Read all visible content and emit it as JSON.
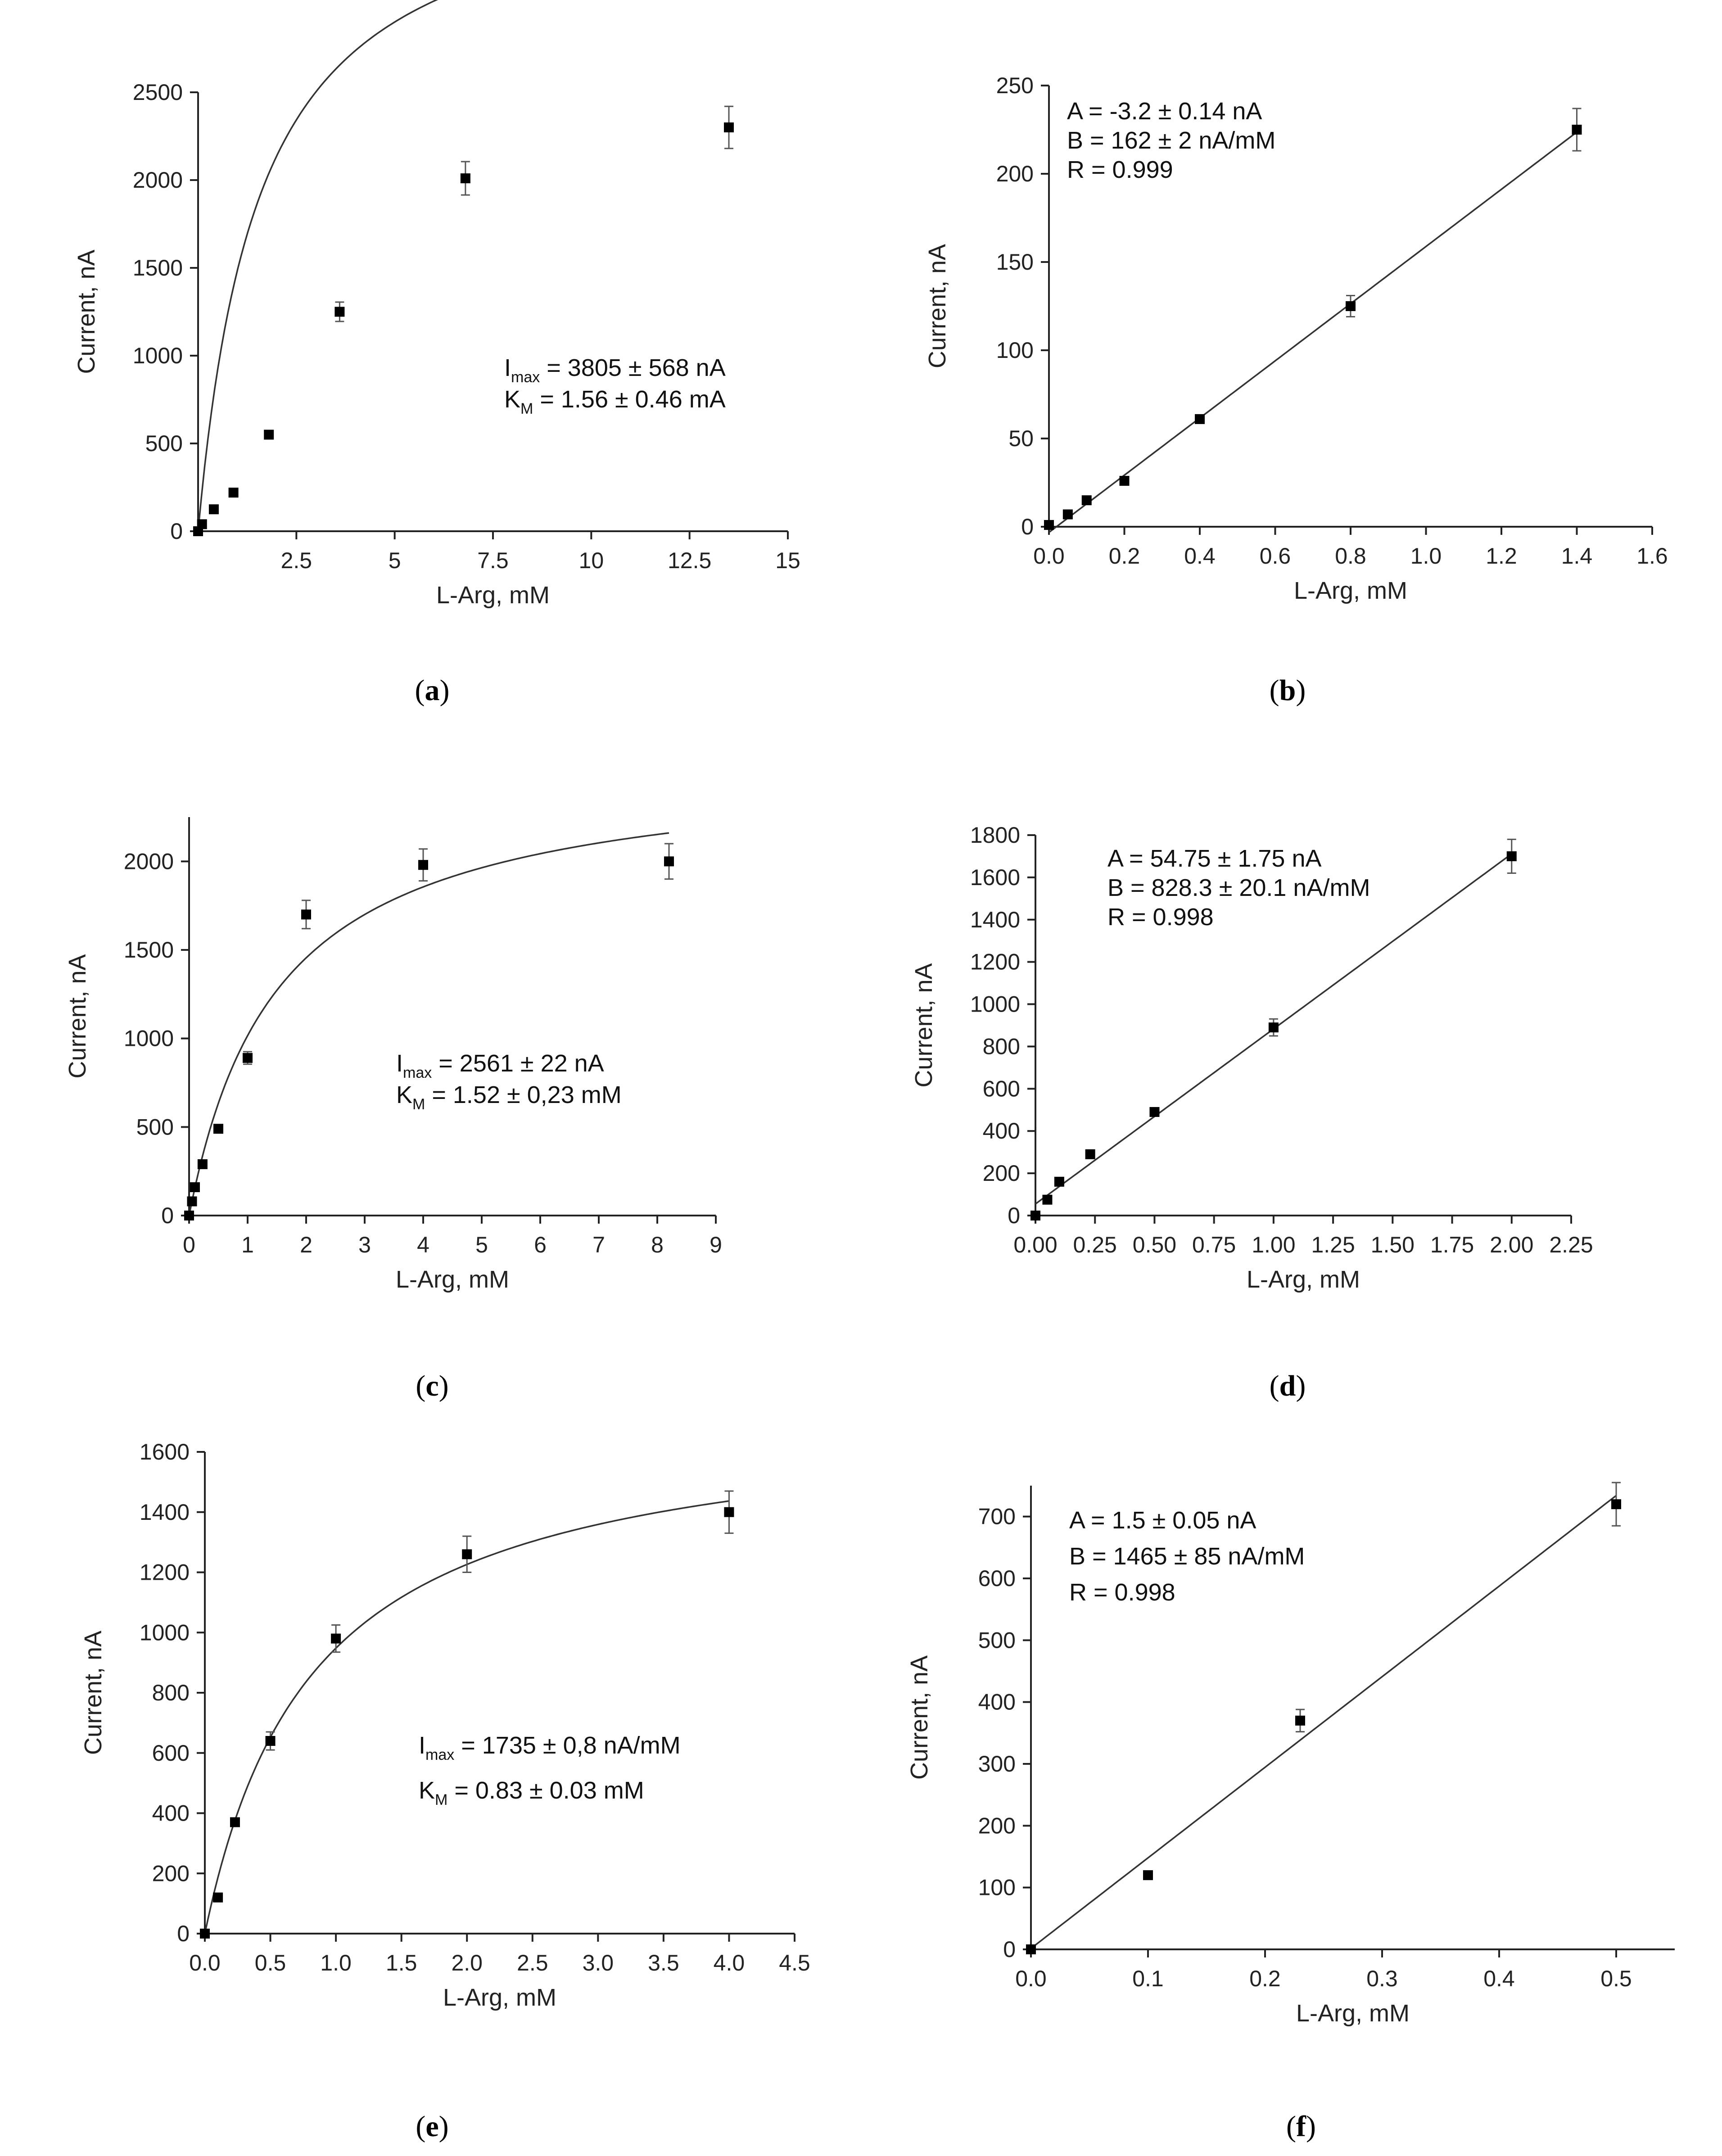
{
  "chart_data": [
    {
      "id": "a",
      "type": "scatter",
      "caption": "a",
      "xlabel": "L-Arg, mM",
      "ylabel": "Current, nA",
      "xlim": [
        0,
        15
      ],
      "ylim": [
        0,
        2500
      ],
      "xticks": [
        2.5,
        5,
        7.5,
        10,
        12.5,
        15
      ],
      "xtick_labels": [
        "2.5",
        "5",
        "7.5",
        "10",
        "12.5",
        "15"
      ],
      "yticks": [
        0,
        500,
        1000,
        1500,
        2000,
        2500
      ],
      "ytick_labels": [
        "0",
        "500",
        "1000",
        "1500",
        "2000",
        "2500"
      ],
      "points": [
        {
          "x": 0.0,
          "y": 0
        },
        {
          "x": 0.1,
          "y": 40
        },
        {
          "x": 0.4,
          "y": 125
        },
        {
          "x": 0.9,
          "y": 220
        },
        {
          "x": 1.8,
          "y": 550
        },
        {
          "x": 3.6,
          "y": 1250,
          "err": 55
        },
        {
          "x": 6.8,
          "y": 2010,
          "err": 95
        },
        {
          "x": 13.5,
          "y": 2300,
          "err": 120
        }
      ],
      "fit": {
        "kind": "michaelis",
        "vmax": 3805,
        "km": 1.56,
        "x0": 0,
        "x1": 13.5
      },
      "annotation": [
        {
          "main": "I",
          "sub": "max",
          "rest": " = 3805 ± 568 nA"
        },
        {
          "main": "K",
          "sub": "M",
          "rest": " = 1.56 ± 0.46 mA"
        }
      ]
    },
    {
      "id": "b",
      "type": "scatter",
      "caption": "b",
      "xlabel": "L-Arg, mM",
      "ylabel": "Current, nA",
      "xlim": [
        0,
        1.6
      ],
      "ylim": [
        0,
        250
      ],
      "xticks": [
        0,
        0.2,
        0.4,
        0.6,
        0.8,
        1.0,
        1.2,
        1.4,
        1.6
      ],
      "xtick_labels": [
        "0.0",
        "0.2",
        "0.4",
        "0.6",
        "0.8",
        "1.0",
        "1.2",
        "1.4",
        "1.6"
      ],
      "yticks": [
        0,
        50,
        100,
        150,
        200,
        250
      ],
      "ytick_labels": [
        "0",
        "50",
        "100",
        "150",
        "200",
        "250"
      ],
      "points": [
        {
          "x": 0.0,
          "y": 1
        },
        {
          "x": 0.05,
          "y": 7
        },
        {
          "x": 0.1,
          "y": 15
        },
        {
          "x": 0.2,
          "y": 26
        },
        {
          "x": 0.4,
          "y": 61
        },
        {
          "x": 0.8,
          "y": 125,
          "err": 6
        },
        {
          "x": 1.4,
          "y": 225,
          "err": 12
        }
      ],
      "fit": {
        "kind": "linear",
        "a": -3.2,
        "b": 162,
        "x0": 0,
        "x1": 1.4
      },
      "annotation": [
        {
          "main": "A = -3.2 ± 0.14 nA"
        },
        {
          "main": "B = 162 ± 2 nA/mM"
        },
        {
          "main": "R = 0.999"
        }
      ]
    },
    {
      "id": "c",
      "type": "scatter",
      "caption": "c",
      "xlabel": "L-Arg, mM",
      "ylabel": "Current, nA",
      "xlim": [
        0,
        9
      ],
      "ylim": [
        0,
        2250
      ],
      "xticks": [
        0,
        1,
        2,
        3,
        4,
        5,
        6,
        7,
        8,
        9
      ],
      "xtick_labels": [
        "0",
        "1",
        "2",
        "3",
        "4",
        "5",
        "6",
        "7",
        "8",
        "9"
      ],
      "yticks": [
        0,
        500,
        1000,
        1500,
        2000
      ],
      "ytick_labels": [
        "0",
        "500",
        "1000",
        "1500",
        "2000"
      ],
      "points": [
        {
          "x": 0.0,
          "y": 0
        },
        {
          "x": 0.05,
          "y": 80
        },
        {
          "x": 0.1,
          "y": 160
        },
        {
          "x": 0.23,
          "y": 290
        },
        {
          "x": 0.5,
          "y": 490
        },
        {
          "x": 1.0,
          "y": 890,
          "err": 35
        },
        {
          "x": 2.0,
          "y": 1700,
          "err": 80
        },
        {
          "x": 4.0,
          "y": 1980,
          "err": 90
        },
        {
          "x": 8.2,
          "y": 2000,
          "err": 100
        }
      ],
      "fit": {
        "kind": "michaelis",
        "vmax": 2561,
        "km": 1.52,
        "x0": 0,
        "x1": 8.2
      },
      "annotation": [
        {
          "main": "I",
          "sub": "max",
          "rest": " = 2561 ± 22 nA"
        },
        {
          "main": "K",
          "sub": "M",
          "rest": " = 1.52 ± 0,23 mM"
        }
      ]
    },
    {
      "id": "d",
      "type": "scatter",
      "caption": "d",
      "xlabel": "L-Arg, mM",
      "ylabel": "Current, nA",
      "xlim": [
        0,
        2.25
      ],
      "ylim": [
        0,
        1800
      ],
      "xticks": [
        0,
        0.25,
        0.5,
        0.75,
        1.0,
        1.25,
        1.5,
        1.75,
        2.0,
        2.25
      ],
      "xtick_labels": [
        "0.00",
        "0.25",
        "0.50",
        "0.75",
        "1.00",
        "1.25",
        "1.50",
        "1.75",
        "2.00",
        "2.25"
      ],
      "yticks": [
        0,
        200,
        400,
        600,
        800,
        1000,
        1200,
        1400,
        1600,
        1800
      ],
      "ytick_labels": [
        "0",
        "200",
        "400",
        "600",
        "800",
        "1000",
        "1200",
        "1400",
        "1600",
        "1800"
      ],
      "points": [
        {
          "x": 0.0,
          "y": 0
        },
        {
          "x": 0.05,
          "y": 75
        },
        {
          "x": 0.1,
          "y": 160
        },
        {
          "x": 0.23,
          "y": 290
        },
        {
          "x": 0.5,
          "y": 490
        },
        {
          "x": 1.0,
          "y": 890,
          "err": 40
        },
        {
          "x": 2.0,
          "y": 1700,
          "err": 80
        }
      ],
      "fit": {
        "kind": "linear",
        "a": 54.75,
        "b": 828.3,
        "x0": 0,
        "x1": 2.0
      },
      "annotation": [
        {
          "main": "A = 54.75 ± 1.75 nA"
        },
        {
          "main": "B = 828.3 ± 20.1 nA/mM"
        },
        {
          "main": "R = 0.998"
        }
      ]
    },
    {
      "id": "e",
      "type": "scatter",
      "caption": "e",
      "xlabel": "L-Arg, mM",
      "ylabel": "Current, nA",
      "xlim": [
        0,
        4.5
      ],
      "ylim": [
        0,
        1600
      ],
      "xticks": [
        0,
        0.5,
        1.0,
        1.5,
        2.0,
        2.5,
        3.0,
        3.5,
        4.0,
        4.5
      ],
      "xtick_labels": [
        "0.0",
        "0.5",
        "1.0",
        "1.5",
        "2.0",
        "2.5",
        "3.0",
        "3.5",
        "4.0",
        "4.5"
      ],
      "yticks": [
        0,
        200,
        400,
        600,
        800,
        1000,
        1200,
        1400,
        1600
      ],
      "ytick_labels": [
        "0",
        "200",
        "400",
        "600",
        "800",
        "1000",
        "1200",
        "1400",
        "1600"
      ],
      "points": [
        {
          "x": 0.0,
          "y": 0
        },
        {
          "x": 0.1,
          "y": 120
        },
        {
          "x": 0.23,
          "y": 370
        },
        {
          "x": 0.5,
          "y": 640,
          "err": 30
        },
        {
          "x": 1.0,
          "y": 980,
          "err": 45
        },
        {
          "x": 2.0,
          "y": 1260,
          "err": 60
        },
        {
          "x": 4.0,
          "y": 1400,
          "err": 70
        }
      ],
      "fit": {
        "kind": "michaelis",
        "vmax": 1735,
        "km": 0.83,
        "x0": 0,
        "x1": 4.0
      },
      "annotation": [
        {
          "main": "I",
          "sub": "max",
          "rest": " = 1735 ± 0,8 nA/mM"
        },
        {
          "main": "K",
          "sub": "M",
          "rest": " = 0.83 ± 0.03 mM"
        }
      ]
    },
    {
      "id": "f",
      "type": "scatter",
      "caption": "f",
      "xlabel": "L-Arg, mM",
      "ylabel": "Current, nA",
      "xlim": [
        0,
        0.55
      ],
      "ylim": [
        0,
        750
      ],
      "xticks": [
        0,
        0.1,
        0.2,
        0.3,
        0.4,
        0.5
      ],
      "xtick_labels": [
        "0.0",
        "0.1",
        "0.2",
        "0.3",
        "0.4",
        "0.5"
      ],
      "yticks": [
        0,
        100,
        200,
        300,
        400,
        500,
        600,
        700
      ],
      "ytick_labels": [
        "0",
        "100",
        "200",
        "300",
        "400",
        "500",
        "600",
        "700"
      ],
      "points": [
        {
          "x": 0.0,
          "y": 0
        },
        {
          "x": 0.1,
          "y": 120
        },
        {
          "x": 0.23,
          "y": 370,
          "err": 18
        },
        {
          "x": 0.5,
          "y": 720,
          "err": 35
        }
      ],
      "fit": {
        "kind": "linear",
        "a": 1.5,
        "b": 1465,
        "x0": 0,
        "x1": 0.5
      },
      "annotation": [
        {
          "main": "A = 1.5 ± 0.05 nA"
        },
        {
          "main": "B = 1465 ± 85 nA/mM"
        },
        {
          "main": "R = 0.998"
        }
      ]
    }
  ]
}
